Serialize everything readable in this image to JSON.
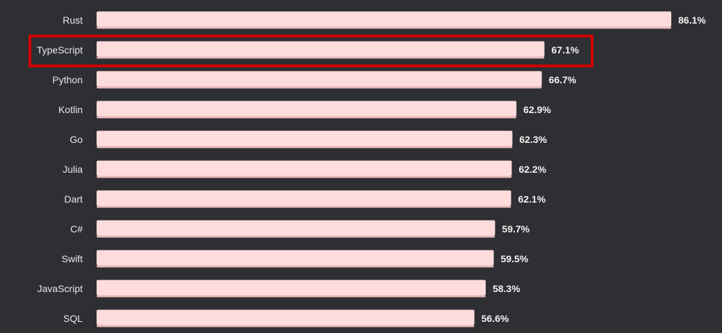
{
  "chart_data": {
    "type": "bar",
    "orientation": "horizontal",
    "categories": [
      "Rust",
      "TypeScript",
      "Python",
      "Kotlin",
      "Go",
      "Julia",
      "Dart",
      "C#",
      "Swift",
      "JavaScript",
      "SQL"
    ],
    "values": [
      86.1,
      67.1,
      66.7,
      62.9,
      62.3,
      62.2,
      62.1,
      59.7,
      59.5,
      58.3,
      56.6
    ],
    "value_labels": [
      "86.1%",
      "67.1%",
      "66.7%",
      "62.9%",
      "62.3%",
      "62.2%",
      "62.1%",
      "59.7%",
      "59.5%",
      "58.3%",
      "56.6%"
    ],
    "unit": "%",
    "xlim": [
      0,
      86.1
    ],
    "grid": false,
    "highlighted_category": "TypeScript"
  },
  "colors": {
    "background": "#2d2f33",
    "bar": "#ffdcdc",
    "bar_shadow": "#e7b9b9",
    "highlight_border": "#d40000",
    "text": "#e9e9e9"
  }
}
